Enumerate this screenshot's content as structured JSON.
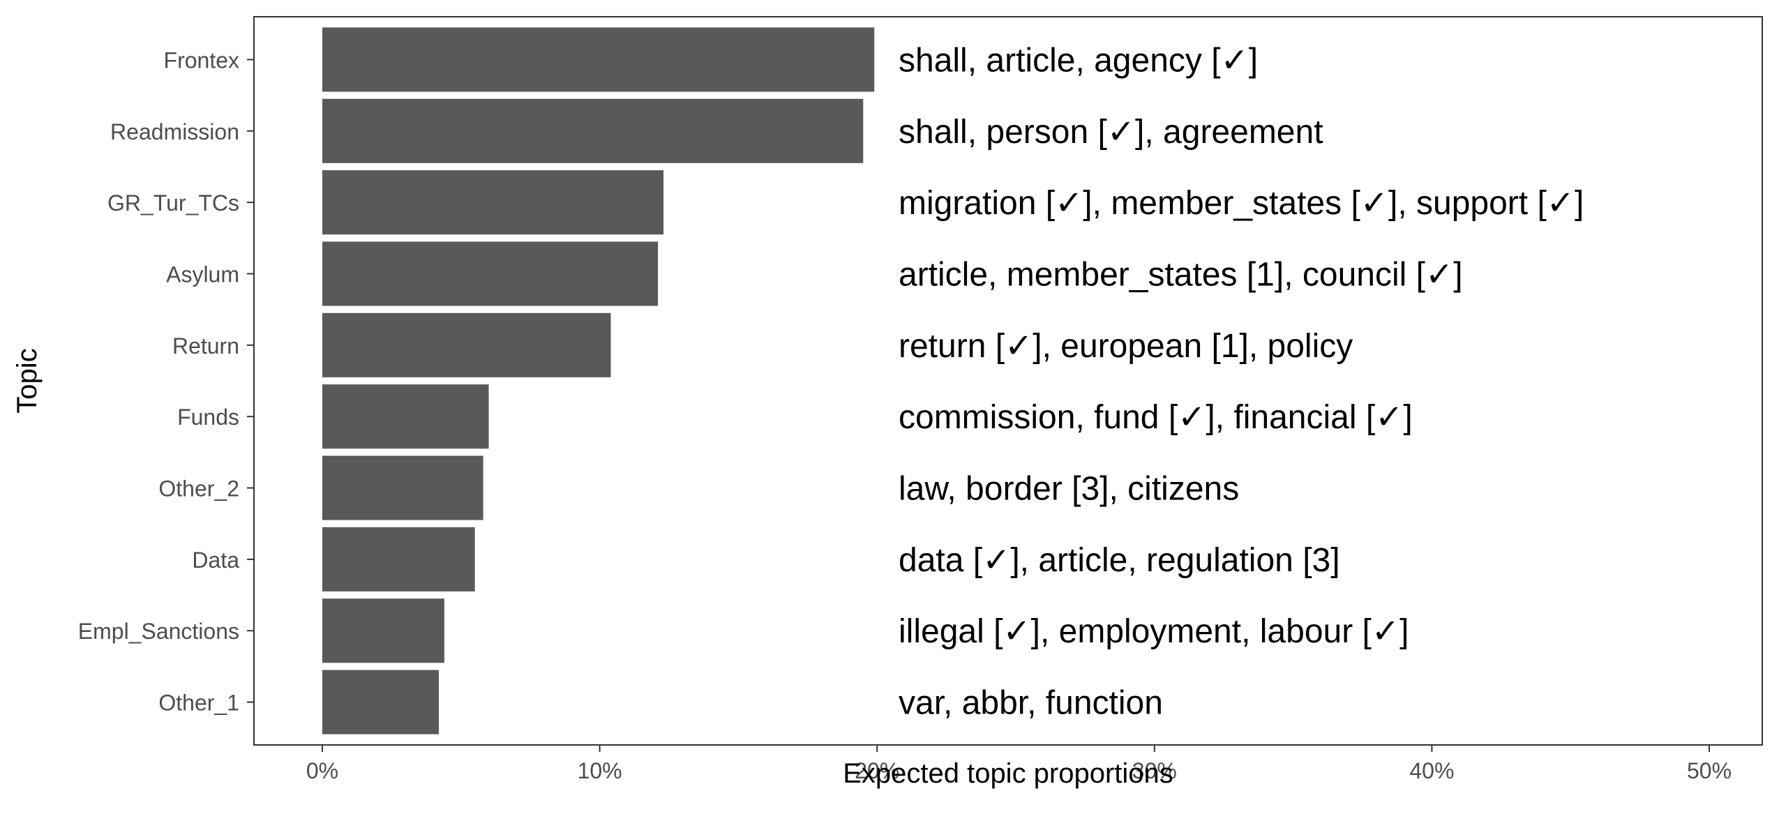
{
  "chart_data": {
    "type": "bar",
    "orientation": "horizontal",
    "xlabel": "Expected topic proportions",
    "ylabel": "Topic",
    "xlim": [
      0,
      50
    ],
    "x_ticks": [
      0,
      10,
      20,
      30,
      40,
      50
    ],
    "x_tick_labels": [
      "0%",
      "10%",
      "20%",
      "30%",
      "40%",
      "50%"
    ],
    "grid": false,
    "legend": "none",
    "bar_color": "#595959",
    "categories": [
      "Frontex",
      "Readmission",
      "GR_Tur_TCs",
      "Asylum",
      "Return",
      "Funds",
      "Other_2",
      "Data",
      "Empl_Sanctions",
      "Other_1"
    ],
    "values": [
      19.9,
      19.5,
      12.3,
      12.1,
      10.4,
      6.0,
      5.8,
      5.5,
      4.4,
      4.2
    ],
    "annotations": [
      "shall, article, agency [✓]",
      "shall, person [✓], agreement",
      "migration [✓], member_states [✓], support [✓]",
      "article, member_states [1], council [✓]",
      "return [✓], european [1], policy",
      "commission, fund [✓], financial [✓]",
      "law, border [3], citizens",
      "data [✓], article, regulation [3]",
      "illegal [✓], employment, labour [✓]",
      "var, abbr, function"
    ]
  }
}
